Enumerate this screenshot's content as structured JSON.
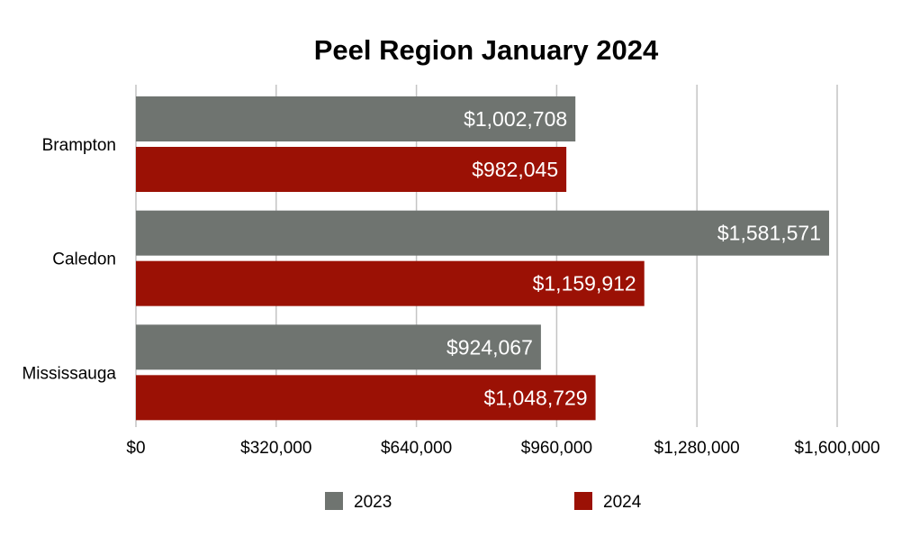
{
  "chart_data": {
    "type": "bar",
    "orientation": "horizontal",
    "title": "Peel Region January 2024",
    "categories": [
      "Brampton",
      "Caledon",
      "Mississauga"
    ],
    "series": [
      {
        "name": "2023",
        "color": "#6f7470",
        "values": [
          1002708,
          1581571,
          924067
        ],
        "labels": [
          "$1,002,708",
          "$1,581,571",
          "$924,067"
        ]
      },
      {
        "name": "2024",
        "color": "#9b1105",
        "values": [
          982045,
          1159912,
          1048729
        ],
        "labels": [
          "$982,045",
          "$1,159,912",
          "$1,048,729"
        ]
      }
    ],
    "xlim": [
      0,
      1600000
    ],
    "xticks": [
      0,
      320000,
      640000,
      960000,
      1280000,
      1600000
    ],
    "xtick_labels": [
      "$0",
      "$320,000",
      "$640,000",
      "$960,000",
      "$1,280,000",
      "$1,600,000"
    ],
    "grid": true,
    "legend": "bottom"
  }
}
